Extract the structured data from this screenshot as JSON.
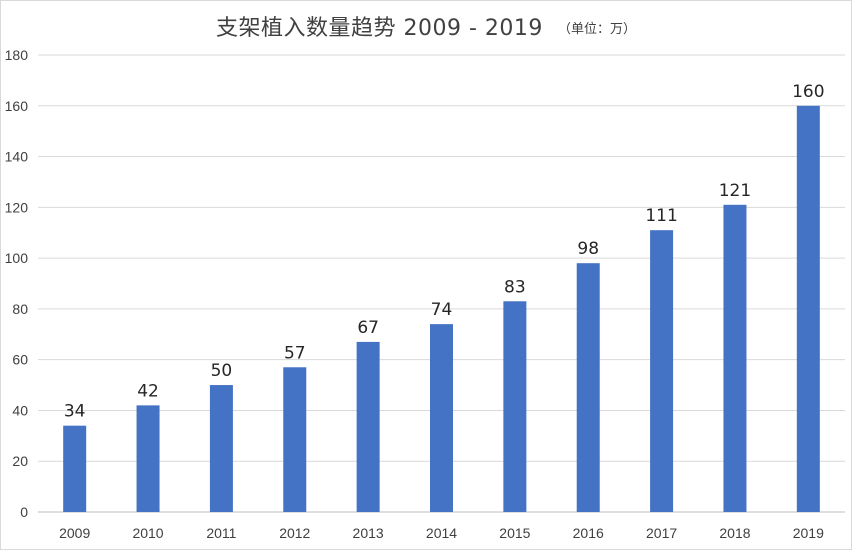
{
  "chart_data": {
    "type": "bar",
    "title": "支架植入数量趋势 2009 - 2019",
    "unit_note": "（单位：万）",
    "xlabel": "",
    "ylabel": "",
    "categories": [
      "2009",
      "2010",
      "2011",
      "2012",
      "2013",
      "2014",
      "2015",
      "2016",
      "2017",
      "2018",
      "2019"
    ],
    "values": [
      34,
      42,
      50,
      57,
      67,
      74,
      83,
      98,
      111,
      121,
      160
    ],
    "ylim": [
      0,
      180
    ],
    "yticks": [
      0,
      20,
      40,
      60,
      80,
      100,
      120,
      140,
      160,
      180
    ],
    "grid": true,
    "legend": "none",
    "bar_color": "#4472c4",
    "show_data_labels": true
  }
}
